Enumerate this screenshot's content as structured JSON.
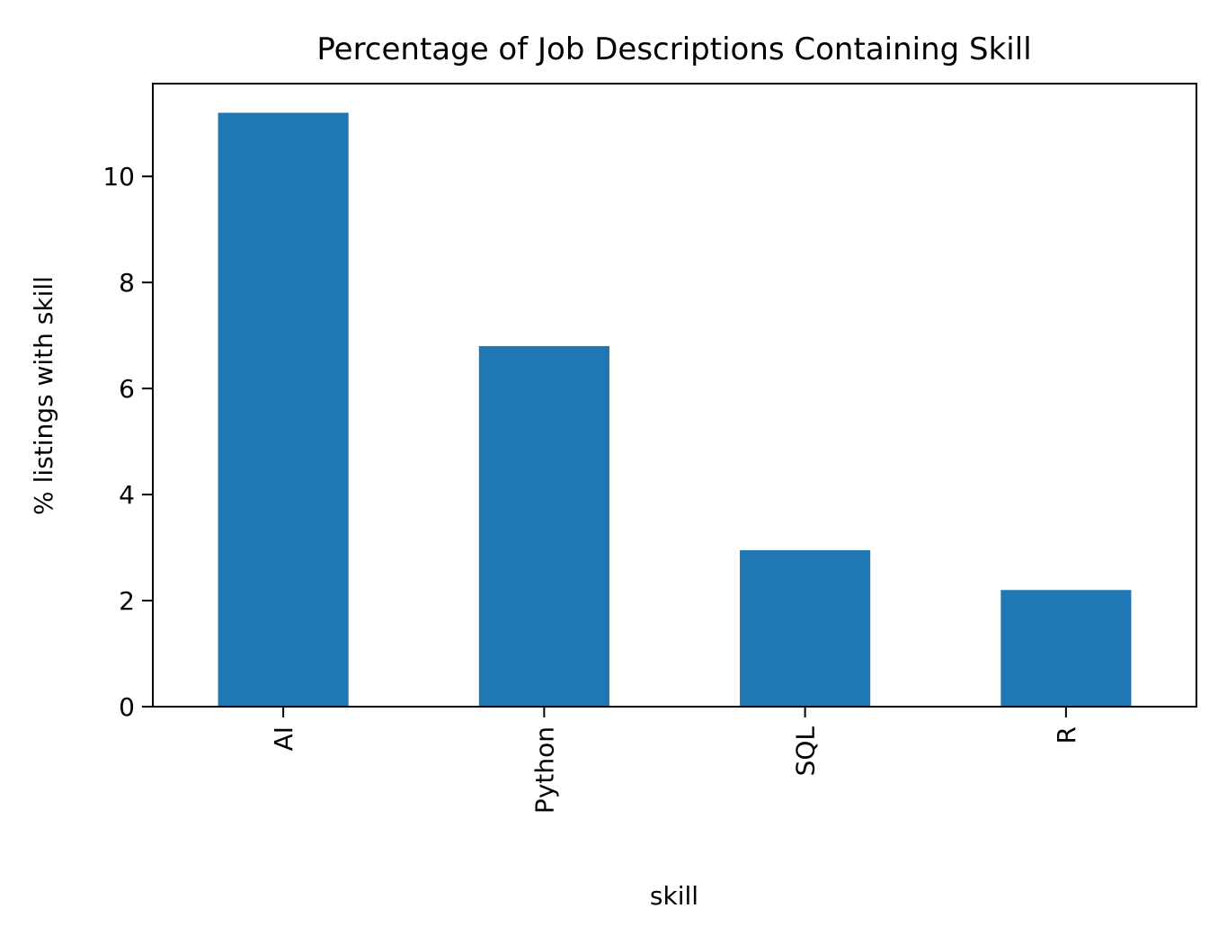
{
  "chart_data": {
    "type": "bar",
    "title": "Percentage of Job Descriptions Containing Skill",
    "xlabel": "skill",
    "ylabel": "% listings with skill",
    "categories": [
      "AI",
      "Python",
      "SQL",
      "R"
    ],
    "values": [
      11.2,
      6.8,
      2.95,
      2.2
    ],
    "ylim": [
      0,
      11.75
    ],
    "yticks": [
      0,
      2,
      4,
      6,
      8,
      10
    ],
    "xtick_rotation": "vertical",
    "grid": false,
    "legend": "none",
    "bar_color": "#1f77b4"
  }
}
